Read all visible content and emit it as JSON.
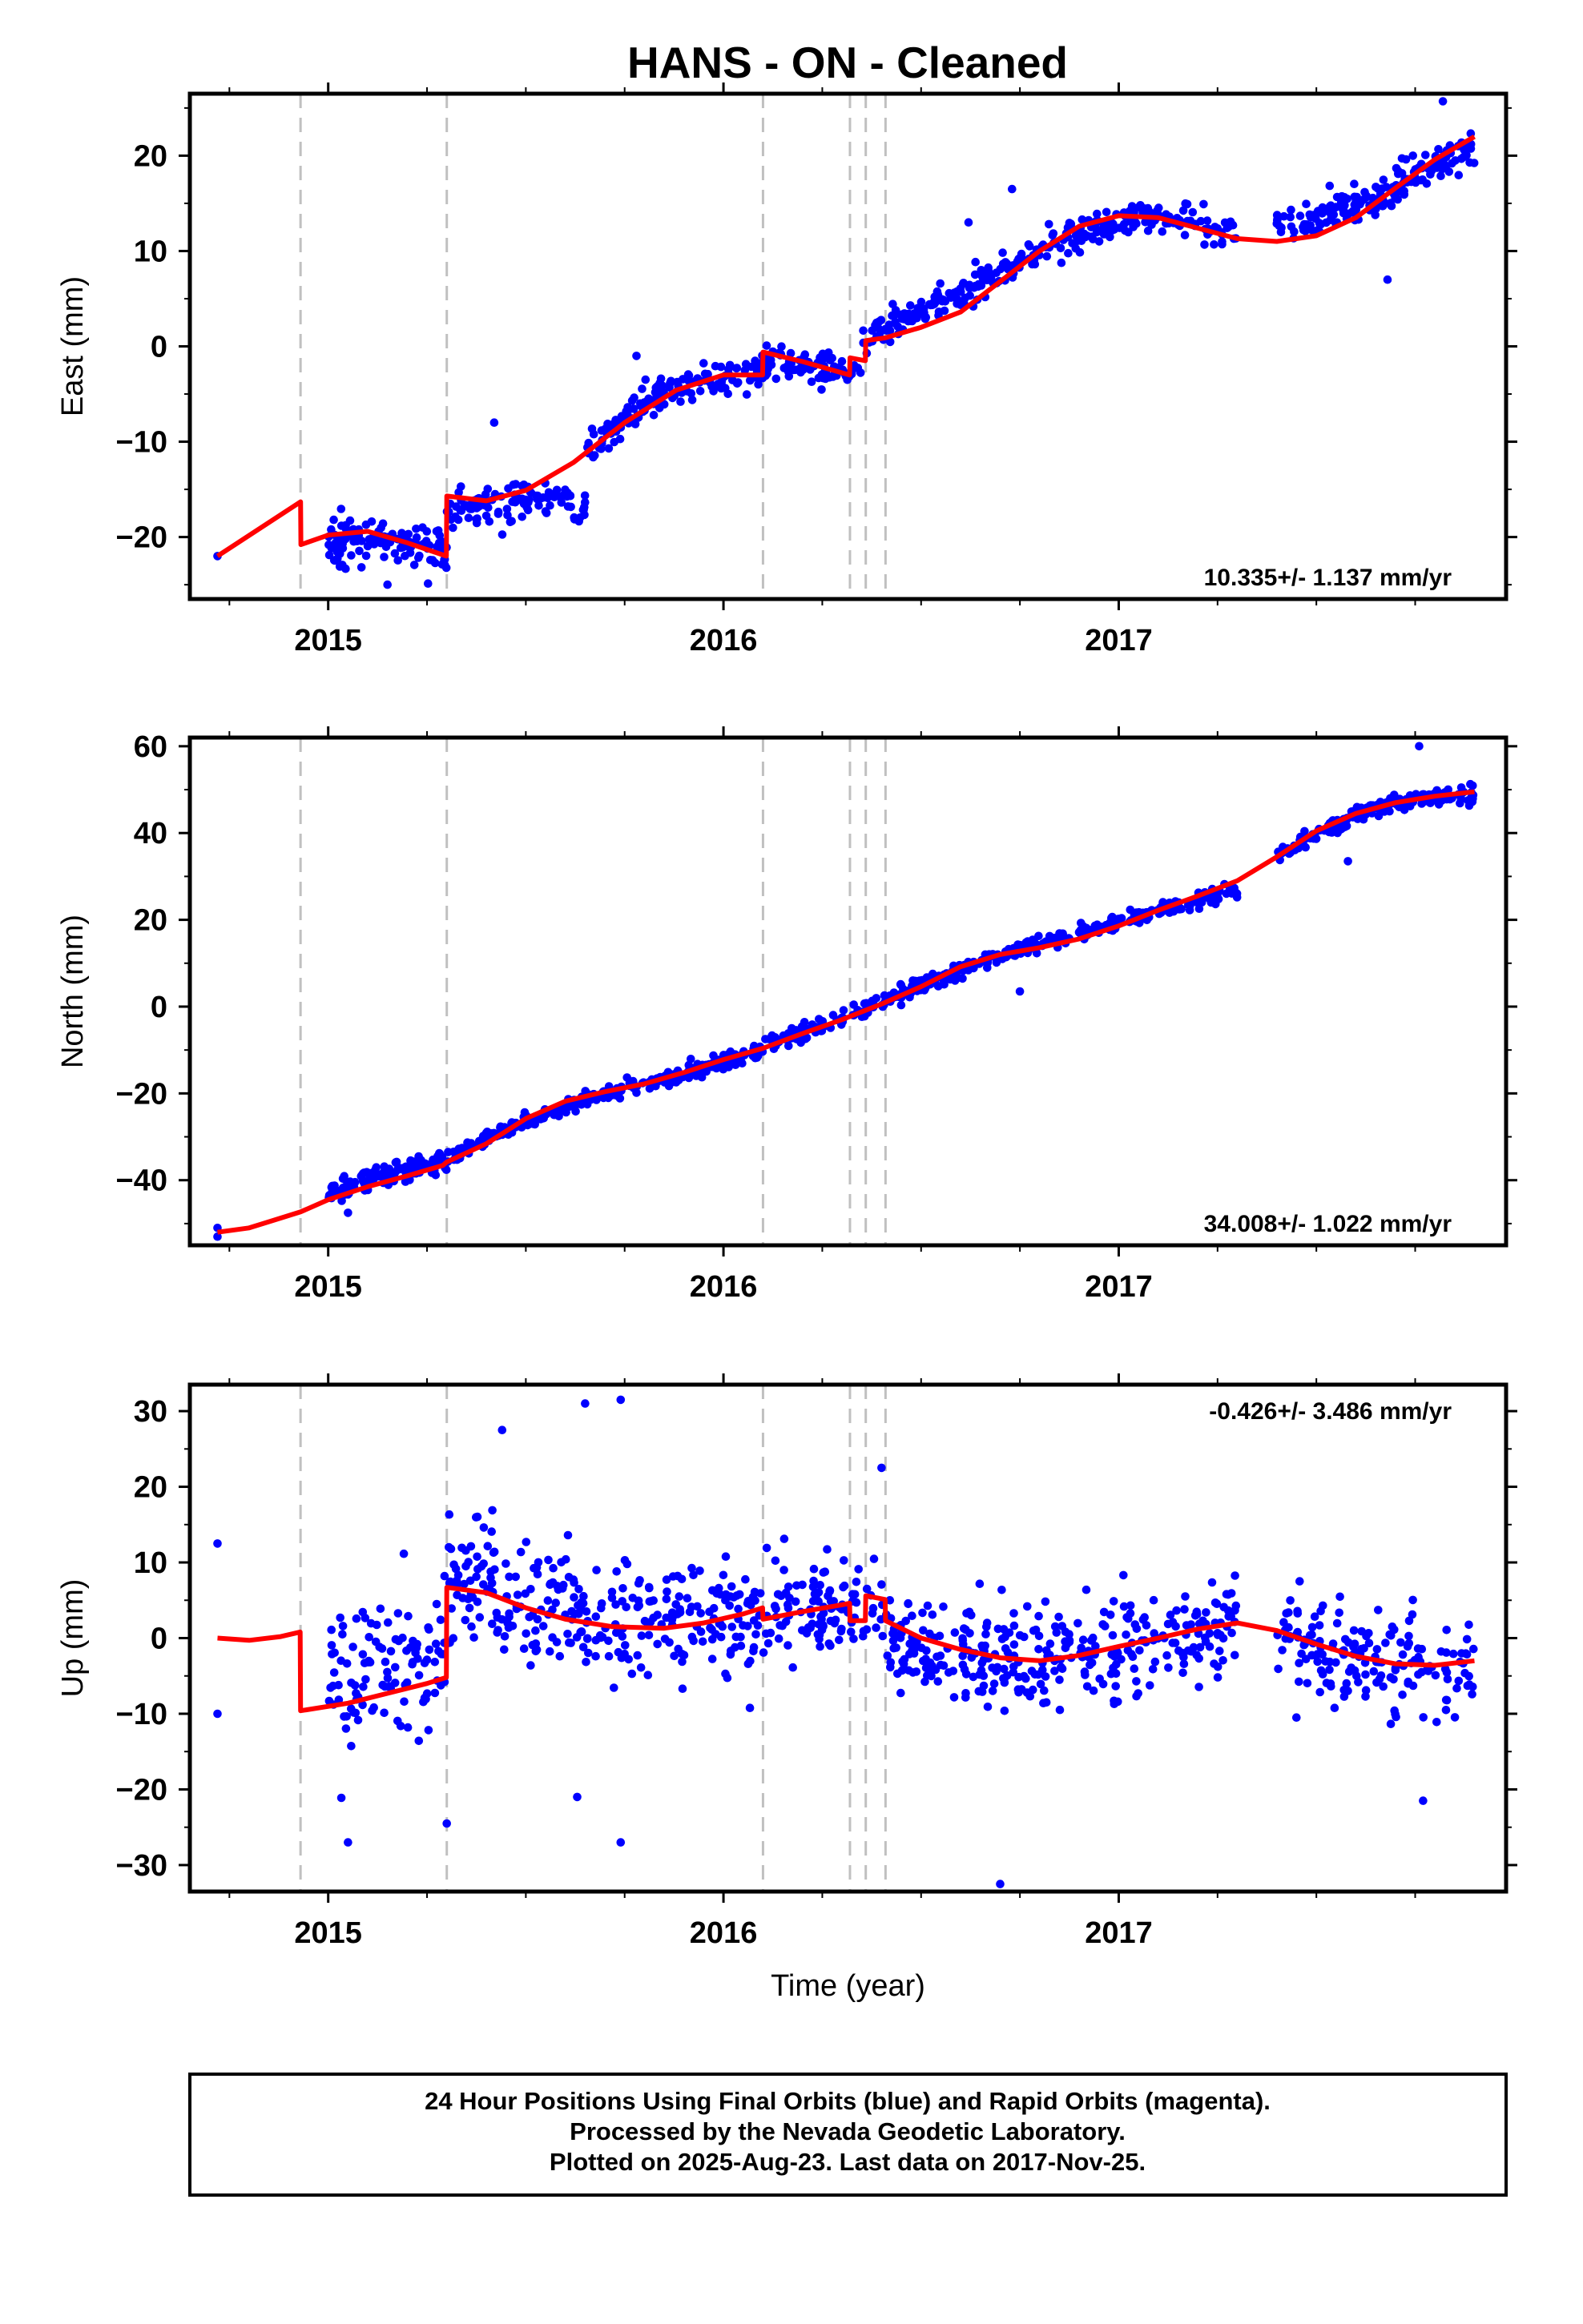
{
  "title": "HANS  - ON - Cleaned",
  "footer": {
    "lines": [
      "24 Hour Positions Using Final Orbits (blue) and Rapid Orbits (magenta).",
      "Processed by the Nevada Geodetic Laboratory.",
      "Plotted on 2025-Aug-23. Last data on 2017-Nov-25."
    ]
  },
  "colors": {
    "data": "#0000ff",
    "model": "#ff0000",
    "breaks": "#c0c0c0",
    "frame": "#000000"
  },
  "chart_data": [
    {
      "type": "scatter",
      "name": "east",
      "ylabel": "East (mm)",
      "xlabel": "",
      "xlim": [
        2014.65,
        2017.98
      ],
      "ylim": [
        -26.5,
        26.5
      ],
      "yticks": [
        -20,
        -10,
        0,
        10,
        20
      ],
      "xticks": [
        2015,
        2016,
        2017
      ],
      "rate_text": "10.335+/- 1.137 mm/yr",
      "rate_position": "bottom-right",
      "grid": false,
      "breaks": [
        2014.93,
        2015.3,
        2016.1,
        2016.32,
        2016.36,
        2016.41
      ],
      "model": [
        [
          2014.72,
          -22
        ],
        [
          2014.93,
          -16.3
        ],
        [
          2014.931,
          -20.8
        ],
        [
          2015.0,
          -19.8
        ],
        [
          2015.1,
          -19.4
        ],
        [
          2015.2,
          -20.6
        ],
        [
          2015.299,
          -22
        ],
        [
          2015.3,
          -15.7
        ],
        [
          2015.4,
          -16.2
        ],
        [
          2015.5,
          -15.1
        ],
        [
          2015.62,
          -12.2
        ],
        [
          2015.75,
          -8.0
        ],
        [
          2015.88,
          -4.6
        ],
        [
          2016.0,
          -3.0
        ],
        [
          2016.099,
          -3.0
        ],
        [
          2016.1,
          -0.6
        ],
        [
          2016.2,
          -1.6
        ],
        [
          2016.319,
          -3.0
        ],
        [
          2016.32,
          -1.2
        ],
        [
          2016.359,
          -1.5
        ],
        [
          2016.36,
          0.6
        ],
        [
          2016.41,
          0.9
        ],
        [
          2016.5,
          2.0
        ],
        [
          2016.6,
          3.6
        ],
        [
          2016.7,
          6.8
        ],
        [
          2016.8,
          10.0
        ],
        [
          2016.9,
          12.6
        ],
        [
          2017.0,
          13.7
        ],
        [
          2017.1,
          13.5
        ],
        [
          2017.2,
          12.4
        ],
        [
          2017.3,
          11.3
        ],
        [
          2017.4,
          11.0
        ],
        [
          2017.5,
          11.6
        ],
        [
          2017.6,
          13.5
        ],
        [
          2017.7,
          16.6
        ],
        [
          2017.8,
          19.6
        ],
        [
          2017.9,
          22.0
        ]
      ],
      "segments": [
        {
          "x0": 2015.0,
          "x1": 2015.3,
          "ys": [
            -21,
            -20,
            -20.5,
            -21.5
          ],
          "spread": 2.0,
          "n": 120
        },
        {
          "x0": 2015.3,
          "x1": 2015.65,
          "ys": [
            -17,
            -16.5,
            -16,
            -16.5
          ],
          "spread": 1.8,
          "n": 110
        },
        {
          "x0": 2015.65,
          "x1": 2016.1,
          "ys": [
            -11,
            -6,
            -3.5,
            -2.5
          ],
          "spread": 1.5,
          "n": 150
        },
        {
          "x0": 2016.1,
          "x1": 2016.35,
          "ys": [
            -1.5,
            -2,
            -2.5,
            -2.2
          ],
          "spread": 1.4,
          "n": 90
        },
        {
          "x0": 2016.35,
          "x1": 2017.3,
          "ys": [
            1,
            5,
            11,
            13.5,
            12
          ],
          "spread": 1.6,
          "n": 300
        },
        {
          "x0": 2017.4,
          "x1": 2017.9,
          "ys": [
            13,
            14,
            15,
            19,
            20.5
          ],
          "spread": 1.7,
          "n": 180
        }
      ],
      "outliers": [
        [
          2014.72,
          -22
        ],
        [
          2016.73,
          16.5
        ],
        [
          2017.82,
          25.7
        ],
        [
          2017.68,
          7
        ],
        [
          2015.15,
          -25
        ],
        [
          2015.42,
          -8
        ],
        [
          2015.78,
          -1
        ],
        [
          2016.62,
          13
        ]
      ]
    },
    {
      "type": "scatter",
      "name": "north",
      "ylabel": "North (mm)",
      "xlabel": "",
      "xlim": [
        2014.65,
        2017.98
      ],
      "ylim": [
        -55,
        62
      ],
      "yticks": [
        -40,
        -20,
        0,
        20,
        40,
        60
      ],
      "xticks": [
        2015,
        2016,
        2017
      ],
      "rate_text": "34.008+/- 1.022 mm/yr",
      "rate_position": "bottom-right",
      "grid": false,
      "breaks": [
        2014.93,
        2015.3,
        2016.1,
        2016.32,
        2016.36,
        2016.41
      ],
      "model": [
        [
          2014.72,
          -52
        ],
        [
          2014.8,
          -51
        ],
        [
          2014.93,
          -47.3
        ],
        [
          2015.0,
          -44.5
        ],
        [
          2015.1,
          -41.5
        ],
        [
          2015.2,
          -39
        ],
        [
          2015.29,
          -36.6
        ],
        [
          2015.3,
          -35.8
        ],
        [
          2015.4,
          -31.6
        ],
        [
          2015.5,
          -25.8
        ],
        [
          2015.6,
          -21.8
        ],
        [
          2015.7,
          -19.6
        ],
        [
          2015.8,
          -17.8
        ],
        [
          2015.9,
          -15.2
        ],
        [
          2016.0,
          -12.2
        ],
        [
          2016.1,
          -9.6
        ],
        [
          2016.2,
          -6.2
        ],
        [
          2016.3,
          -3.0
        ],
        [
          2016.4,
          0.6
        ],
        [
          2016.5,
          4.6
        ],
        [
          2016.6,
          9.2
        ],
        [
          2016.7,
          12.0
        ],
        [
          2016.8,
          13.6
        ],
        [
          2016.9,
          15.6
        ],
        [
          2017.0,
          18.6
        ],
        [
          2017.1,
          22.2
        ],
        [
          2017.2,
          25.5
        ],
        [
          2017.3,
          29.0
        ],
        [
          2017.4,
          34.5
        ],
        [
          2017.5,
          40.5
        ],
        [
          2017.6,
          44.5
        ],
        [
          2017.7,
          47.0
        ],
        [
          2017.8,
          48.5
        ],
        [
          2017.9,
          49.5
        ]
      ],
      "segments": [
        {
          "x0": 2015.0,
          "x1": 2015.3,
          "ys": [
            -43,
            -40,
            -37.5,
            -36
          ],
          "spread": 2.5,
          "n": 120
        },
        {
          "x0": 2015.3,
          "x1": 2016.1,
          "ys": [
            -35,
            -26,
            -20,
            -15.5,
            -10
          ],
          "spread": 1.6,
          "n": 280
        },
        {
          "x0": 2016.1,
          "x1": 2017.3,
          "ys": [
            -9,
            -3,
            5,
            12,
            17,
            22,
            27
          ],
          "spread": 1.6,
          "n": 400
        },
        {
          "x0": 2017.4,
          "x1": 2017.9,
          "ys": [
            35,
            41,
            46,
            48,
            49
          ],
          "spread": 1.6,
          "n": 180
        }
      ],
      "outliers": [
        [
          2014.72,
          -51
        ],
        [
          2014.72,
          -53
        ],
        [
          2017.76,
          60
        ],
        [
          2017.58,
          33.5
        ],
        [
          2016.75,
          3.5
        ],
        [
          2015.05,
          -47.5
        ]
      ]
    },
    {
      "type": "scatter",
      "name": "up",
      "ylabel": "Up (mm)",
      "xlabel": "Time (year)",
      "xlim": [
        2014.65,
        2017.98
      ],
      "ylim": [
        -33.5,
        33.5
      ],
      "yticks": [
        -30,
        -20,
        -10,
        0,
        10,
        20,
        30
      ],
      "xticks": [
        2015,
        2016,
        2017
      ],
      "rate_text": "-0.426+/- 3.486 mm/yr",
      "rate_position": "top-right",
      "grid": false,
      "breaks": [
        2014.93,
        2015.3,
        2016.1,
        2016.32,
        2016.36,
        2016.41
      ],
      "model": [
        [
          2014.72,
          0
        ],
        [
          2014.8,
          -0.3
        ],
        [
          2014.88,
          0.2
        ],
        [
          2014.929,
          0.8
        ],
        [
          2014.93,
          -9.6
        ],
        [
          2015.05,
          -8.6
        ],
        [
          2015.15,
          -7.3
        ],
        [
          2015.25,
          -6
        ],
        [
          2015.299,
          -5.2
        ],
        [
          2015.3,
          6.7
        ],
        [
          2015.4,
          6.0
        ],
        [
          2015.5,
          4.0
        ],
        [
          2015.6,
          2.5
        ],
        [
          2015.72,
          1.5
        ],
        [
          2015.85,
          1.3
        ],
        [
          2015.95,
          2.0
        ],
        [
          2016.05,
          3.2
        ],
        [
          2016.099,
          4.0
        ],
        [
          2016.1,
          2.5
        ],
        [
          2016.2,
          3.5
        ],
        [
          2016.3,
          4.4
        ],
        [
          2016.319,
          4.6
        ],
        [
          2016.32,
          2.3
        ],
        [
          2016.359,
          2.3
        ],
        [
          2016.36,
          5.6
        ],
        [
          2016.409,
          5.1
        ],
        [
          2016.41,
          2.3
        ],
        [
          2016.5,
          0.0
        ],
        [
          2016.6,
          -1.5
        ],
        [
          2016.7,
          -2.6
        ],
        [
          2016.8,
          -3.0
        ],
        [
          2016.9,
          -2.3
        ],
        [
          2017.0,
          -1.1
        ],
        [
          2017.1,
          0.0
        ],
        [
          2017.2,
          1.2
        ],
        [
          2017.3,
          2.0
        ],
        [
          2017.4,
          1.0
        ],
        [
          2017.5,
          -0.8
        ],
        [
          2017.6,
          -2.4
        ],
        [
          2017.7,
          -3.4
        ],
        [
          2017.8,
          -3.6
        ],
        [
          2017.9,
          -3.0
        ]
      ],
      "segments": [
        {
          "x0": 2015.0,
          "x1": 2015.3,
          "ys": [
            -6,
            -5,
            -4,
            -3
          ],
          "spread": 9,
          "n": 110
        },
        {
          "x0": 2015.3,
          "x1": 2016.1,
          "ys": [
            8,
            5,
            2,
            3,
            3
          ],
          "spread": 7,
          "n": 300
        },
        {
          "x0": 2016.1,
          "x1": 2016.41,
          "ys": [
            3,
            4,
            4,
            3
          ],
          "spread": 6,
          "n": 110
        },
        {
          "x0": 2016.41,
          "x1": 2017.3,
          "ys": [
            0,
            -3,
            -3,
            -1,
            2
          ],
          "spread": 6,
          "n": 330
        },
        {
          "x0": 2017.4,
          "x1": 2017.9,
          "ys": [
            1,
            -2,
            -3,
            -4,
            -4
          ],
          "spread": 6.5,
          "n": 170
        }
      ],
      "outliers": [
        [
          2014.72,
          12.5
        ],
        [
          2014.72,
          -10
        ],
        [
          2015.74,
          31.5
        ],
        [
          2015.65,
          31
        ],
        [
          2015.44,
          27.5
        ],
        [
          2016.7,
          -32.5
        ],
        [
          2016.4,
          22.5
        ],
        [
          2015.63,
          -21
        ],
        [
          2015.74,
          -27
        ],
        [
          2017.77,
          -21.5
        ],
        [
          2015.3,
          -24.5
        ],
        [
          2015.05,
          -27
        ]
      ]
    }
  ]
}
